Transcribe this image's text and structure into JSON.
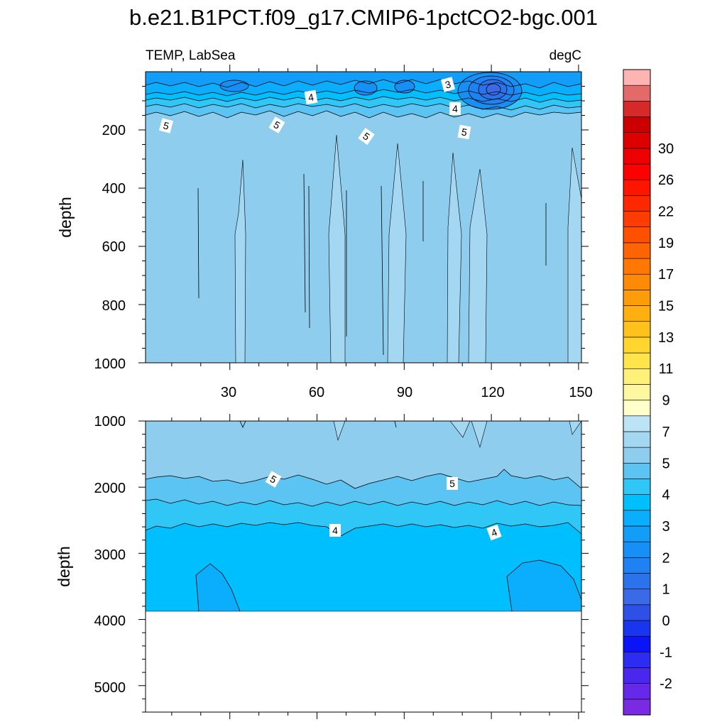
{
  "chart_data": {
    "type": "contour",
    "title": "b.e21.B1PCT.f09_g17.CMIP6-1pctCO2-bgc.001",
    "left_label": "TEMP, LabSea",
    "right_label": "degC",
    "colors": {
      "c_lt2": "#7a2ae0",
      "c_m2_m15": "#6628ea",
      "c_m15_m1": "#4a26ee",
      "c_m1_m05": "#2e2bf2",
      "c_m05_0": "#0a14f6",
      "c_0_05": "#1a35ee",
      "c_05_1": "#2f50e6",
      "c_1_15": "#3a6ae8",
      "c_15_2": "#2a73ec",
      "c_2_25": "#1e82f2",
      "c_25_3": "#1690f6",
      "c_3_35": "#129df8",
      "c_35_4": "#0aaefc",
      "c_4_45": "#00bfff",
      "c_45_5": "#30c6f6",
      "c_5_55": "#5cc4f2",
      "c_55_6": "#8ecdee",
      "c_6_7": "#a4d7f2",
      "c_7_8": "#bde3f6",
      "c_8_9": "#ffffcc",
      "c_9_10": "#fff7a0",
      "c_10_11": "#fff07a",
      "c_11_12": "#ffe44c",
      "c_12_13": "#ffd52e",
      "c_13_14": "#ffc21a",
      "c_14_15": "#ffaf10",
      "c_15_16": "#ff9c0a",
      "c_16_17": "#ff8a06",
      "c_17_18": "#ff7804",
      "c_18_19": "#ff6402",
      "c_19_20": "#ff5000",
      "c_20_21": "#ff3c00",
      "c_21_22": "#ff2800",
      "c_22_23": "#ff1400",
      "c_23_24": "#ff0000",
      "c_24_25": "#ec0000",
      "c_25_26": "#dc0000",
      "c_26_27": "#cc0000",
      "c_27_30": "#d62a2a",
      "c_30_32": "#e46a6a",
      "c_gt32": "#ffb4b4"
    },
    "top_panel": {
      "xlim": [
        1,
        151
      ],
      "ylim": [
        1000,
        0
      ],
      "x_ticks": [
        "30",
        "60",
        "90",
        "120",
        "150"
      ],
      "y_ticks": [
        "200",
        "400",
        "600",
        "800",
        "1000"
      ],
      "ylabel": "depth",
      "contour_labels": [
        "3",
        "4",
        "4",
        "5",
        "5",
        "5",
        "5"
      ]
    },
    "bottom_panel": {
      "xlim": [
        1,
        151
      ],
      "ylim": [
        5400,
        1000
      ],
      "y_ticks": [
        "1000",
        "2000",
        "3000",
        "4000",
        "5000"
      ],
      "ylabel": "depth",
      "ocean_floor_depth": 3850,
      "contour_labels": [
        "5",
        "5",
        "4",
        "4"
      ]
    },
    "colorbar": {
      "labels": [
        "-2",
        "-1",
        "0",
        "1",
        "2",
        "3",
        "4",
        "5",
        "7",
        "9",
        "11",
        "13",
        "15",
        "17",
        "19",
        "22",
        "26",
        "30"
      ]
    }
  }
}
